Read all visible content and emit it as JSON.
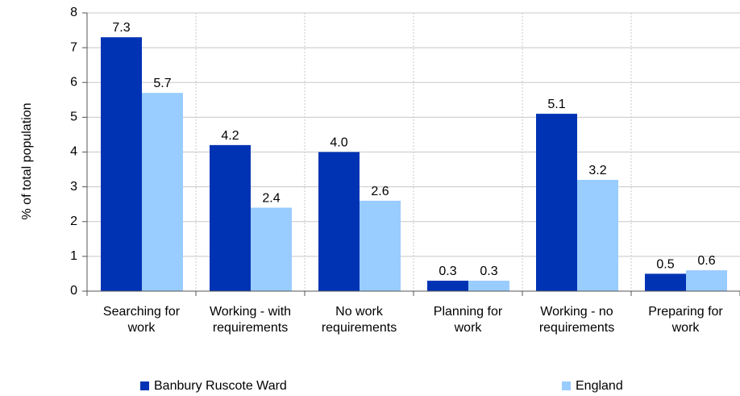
{
  "chart_data": {
    "type": "bar",
    "title": "",
    "xlabel": "",
    "ylabel": "% of total population",
    "ylim": [
      0,
      8
    ],
    "yticks": [
      0,
      1,
      2,
      3,
      4,
      5,
      6,
      7,
      8
    ],
    "grid": true,
    "legend_position": "bottom",
    "categories": [
      [
        "Searching for",
        "work"
      ],
      [
        "Working - with",
        "requirements"
      ],
      [
        "No work",
        "requirements"
      ],
      [
        "Planning for",
        "work"
      ],
      [
        "Working - no",
        "requirements"
      ],
      [
        "Preparing for",
        "work"
      ]
    ],
    "series": [
      {
        "name": "Banbury Ruscote Ward",
        "color": "#0033b4",
        "values": [
          7.3,
          4.2,
          4.0,
          0.3,
          5.1,
          0.5
        ],
        "labels": [
          "7.3",
          "4.2",
          "4.0",
          "0.3",
          "5.1",
          "0.5"
        ]
      },
      {
        "name": "England",
        "color": "#99ccff",
        "values": [
          5.7,
          2.4,
          2.6,
          0.3,
          3.2,
          0.6
        ],
        "labels": [
          "5.7",
          "2.4",
          "2.6",
          "0.3",
          "3.2",
          "0.6"
        ]
      }
    ],
    "gridline_color": "#c8c8c8",
    "axis_color": "#555555"
  }
}
